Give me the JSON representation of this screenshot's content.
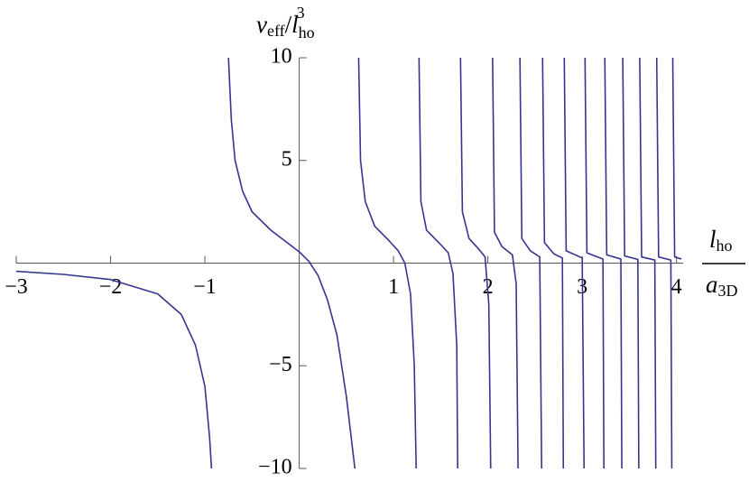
{
  "chart_data": {
    "type": "line",
    "color": "#35358f",
    "ylabel_parts": [
      "v",
      "eff",
      "/",
      "l",
      "ho",
      "3"
    ],
    "xlabel_numerator": [
      "l",
      "ho"
    ],
    "xlabel_denominator": [
      "a",
      "3D"
    ],
    "xlim": [
      -3,
      4.07
    ],
    "ylim": [
      -10,
      10
    ],
    "xticks": [
      {
        "value": -3,
        "label": "−3"
      },
      {
        "value": -2,
        "label": "−2"
      },
      {
        "value": -1,
        "label": "−1"
      },
      1,
      2,
      3,
      4
    ],
    "yticks": [
      {
        "value": -10,
        "label": "−10"
      },
      {
        "value": -5,
        "label": "−5"
      },
      5,
      10
    ],
    "series": [
      {
        "x": [
          -3,
          -2.5,
          -2,
          -1.5,
          -1.25,
          -1.1,
          -1.0,
          -0.95,
          -0.93
        ],
        "values": [
          -0.4,
          -0.55,
          -0.8,
          -1.5,
          -2.5,
          -4,
          -6,
          -8.5,
          -10
        ]
      },
      {
        "x": [
          -0.75,
          -0.72,
          -0.68,
          -0.6,
          -0.5,
          -0.3,
          -0.1,
          0,
          0.1,
          0.2,
          0.3,
          0.4,
          0.5,
          0.59
        ],
        "values": [
          10,
          7,
          5,
          3.5,
          2.5,
          1.6,
          0.9,
          0.55,
          0.1,
          -0.6,
          -1.8,
          -3.5,
          -6.5,
          -10
        ]
      },
      {
        "x": [
          0.63,
          0.65,
          0.7,
          0.8,
          0.95,
          1.05,
          1.12,
          1.18,
          1.22,
          1.24
        ],
        "values": [
          10,
          5,
          3,
          1.8,
          1.1,
          0.6,
          0,
          -1.5,
          -5,
          -10
        ]
      },
      {
        "x": [
          1.27,
          1.29,
          1.35,
          1.5,
          1.58,
          1.63,
          1.67,
          1.68
        ],
        "values": [
          10,
          3,
          1.6,
          0.9,
          0.5,
          -0.5,
          -4,
          -10
        ]
      },
      {
        "x": [
          1.71,
          1.73,
          1.8,
          1.9,
          1.97,
          2.01,
          2.03
        ],
        "values": [
          10,
          2.5,
          1.2,
          0.7,
          0.3,
          -2,
          -10
        ]
      },
      {
        "x": [
          2.05,
          2.07,
          2.15,
          2.26,
          2.3,
          2.32
        ],
        "values": [
          10,
          1.5,
          0.8,
          0.4,
          -1,
          -10
        ]
      },
      {
        "x": [
          2.34,
          2.36,
          2.45,
          2.55,
          2.57
        ],
        "values": [
          10,
          1.2,
          0.6,
          0.3,
          -10
        ]
      },
      {
        "x": [
          2.58,
          2.6,
          2.7,
          2.79,
          2.8
        ],
        "values": [
          10,
          1,
          0.45,
          0.25,
          -10
        ]
      },
      {
        "x": [
          2.81,
          2.83,
          3.0,
          3.02
        ],
        "values": [
          10,
          0.6,
          0.25,
          -10
        ]
      },
      {
        "x": [
          3.03,
          3.05,
          3.22,
          3.23
        ],
        "values": [
          10,
          0.5,
          0.2,
          -10
        ]
      },
      {
        "x": [
          3.24,
          3.26,
          3.41,
          3.42
        ],
        "values": [
          10,
          0.4,
          0.2,
          -10
        ]
      },
      {
        "x": [
          3.43,
          3.45,
          3.59,
          3.6
        ],
        "values": [
          10,
          0.35,
          0.18,
          -10
        ]
      },
      {
        "x": [
          3.61,
          3.63,
          3.77,
          3.78
        ],
        "values": [
          10,
          0.3,
          0.15,
          -10
        ]
      },
      {
        "x": [
          3.79,
          3.81,
          3.94,
          3.95
        ],
        "values": [
          10,
          0.3,
          0.15,
          -10
        ]
      },
      {
        "x": [
          3.96,
          3.98,
          4.05
        ],
        "values": [
          10,
          0.3,
          0.2
        ]
      }
    ]
  }
}
